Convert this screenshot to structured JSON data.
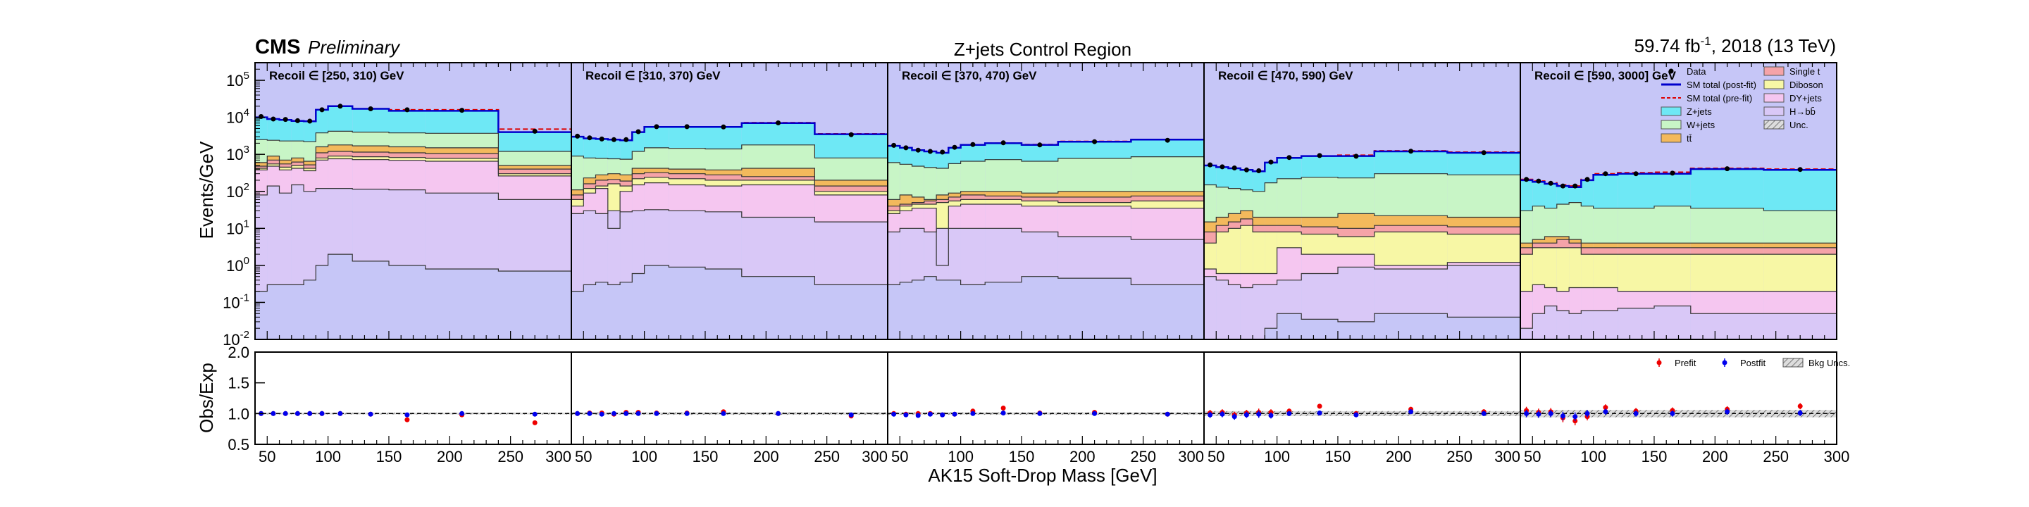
{
  "header": {
    "experiment": "CMS",
    "status": "Preliminary",
    "region_title": "Z+jets Control Region",
    "lumi": "59.74 fb",
    "lumi_exp": "-1",
    "lumi_suffix": ", 2018 (13 TeV)"
  },
  "chart_data": {
    "type": "area",
    "xlabel": "AK15 Soft-Drop Mass [GeV]",
    "ylabel_main": "Events/GeV",
    "ylabel_ratio": "Obs/Exp",
    "main_yscale": "log",
    "main_ylim": [
      0.01,
      300000
    ],
    "main_yticks": [
      {
        "v": 100000,
        "b": "10",
        "e": "5"
      },
      {
        "v": 10000,
        "b": "10",
        "e": "4"
      },
      {
        "v": 1000,
        "b": "10",
        "e": "3"
      },
      {
        "v": 100,
        "b": "10",
        "e": "2"
      },
      {
        "v": 10,
        "b": "10",
        "e": "1"
      },
      {
        "v": 1,
        "b": "10",
        "e": "0"
      },
      {
        "v": 0.1,
        "b": "10",
        "e": "-1"
      },
      {
        "v": 0.01,
        "b": "10",
        "e": "-2"
      }
    ],
    "ratio_ylim": [
      0.5,
      2.0
    ],
    "ratio_yticks": [
      "2.0",
      "1.5",
      "1.0",
      "0.5"
    ],
    "xlim": [
      40,
      300
    ],
    "xticks_labels": [
      "50",
      "100",
      "150",
      "200",
      "250",
      "300"
    ],
    "xticks_values": [
      50,
      100,
      150,
      200,
      250,
      300
    ],
    "bin_edges": [
      40,
      50,
      60,
      70,
      80,
      90,
      100,
      120,
      150,
      180,
      240,
      300
    ],
    "legend_main": [
      {
        "label": "Data",
        "kind": "marker",
        "color": "#000000"
      },
      {
        "label": "SM total (post-fit)",
        "kind": "line",
        "color": "#0000cc"
      },
      {
        "label": "SM total (pre-fit)",
        "kind": "dash",
        "color": "#dd0000"
      },
      {
        "label": "Z+jets",
        "kind": "box",
        "color": "#6ee8f5"
      },
      {
        "label": "W+jets",
        "kind": "box",
        "color": "#c8f5c6"
      },
      {
        "label": "tt̄",
        "kind": "box",
        "color": "#f3b95c"
      },
      {
        "label": "Single t",
        "kind": "box",
        "color": "#f5a3a8"
      },
      {
        "label": "Diboson",
        "kind": "box",
        "color": "#f7f7a5"
      },
      {
        "label": "DY+jets",
        "kind": "box",
        "color": "#f5c6f0"
      },
      {
        "label": "H→bb̄",
        "kind": "box",
        "color": "#d9c8f7"
      },
      {
        "label": "Unc.",
        "kind": "hatch",
        "color": "#999999"
      }
    ],
    "legend_ratio": [
      {
        "label": "Prefit",
        "color": "#ee0000"
      },
      {
        "label": "Postfit",
        "color": "#0000ee"
      },
      {
        "label": "Bkg Uncs.",
        "color": "#999999"
      }
    ],
    "stack_order": [
      "Z+jets",
      "W+jets",
      "tt̄",
      "Single t",
      "Diboson",
      "DY+jets",
      "H→bb̄"
    ],
    "colors": {
      "Z+jets": "#6ee8f5",
      "W+jets": "#c8f5c6",
      "tt̄": "#f3b95c",
      "Single t": "#f5a3a8",
      "Diboson": "#f7f7a5",
      "DY+jets": "#f5c6f0",
      "H→bb̄": "#d9c8f7",
      "base": "#c6c6f7"
    },
    "panels": [
      {
        "label": "Recoil ∈ [250, 310) GeV",
        "total": [
          10000,
          9000,
          8500,
          8000,
          7800,
          16000,
          20000,
          17000,
          15000,
          15000,
          4000
        ],
        "prefit": [
          10000,
          9000,
          8500,
          8000,
          7800,
          16000,
          20000,
          17000,
          16000,
          16000,
          4800
        ],
        "bounds": [
          [
            2500,
            2400,
            2300,
            2300,
            2200,
            3800,
            4200,
            4000,
            3800,
            3700,
            1200
          ],
          [
            600,
            900,
            700,
            800,
            650,
            1600,
            1800,
            1700,
            1600,
            1500,
            500
          ],
          [
            480,
            700,
            550,
            620,
            520,
            1100,
            1200,
            1150,
            1100,
            1050,
            400
          ],
          [
            420,
            550,
            450,
            500,
            420,
            800,
            900,
            860,
            820,
            780,
            300
          ],
          [
            380,
            480,
            380,
            420,
            360,
            700,
            760,
            720,
            690,
            650,
            260
          ],
          [
            80,
            140,
            90,
            150,
            100,
            120,
            120,
            115,
            110,
            90,
            60
          ],
          [
            0.2,
            0.3,
            0.3,
            0.3,
            0.4,
            1.0,
            2.0,
            1.3,
            1.0,
            0.8,
            0.7
          ]
        ],
        "data": [
          10500,
          9000,
          8800,
          8100,
          7900,
          16000,
          20000,
          17000,
          16000,
          15500,
          4200
        ],
        "ratio_pre": [
          1.0,
          1.0,
          1.0,
          1.0,
          1.0,
          1.0,
          1.0,
          0.99,
          0.9,
          0.98,
          0.85
        ],
        "ratio_post": [
          1.0,
          1.0,
          1.0,
          1.0,
          1.0,
          1.0,
          1.0,
          0.99,
          0.98,
          1.0,
          0.99
        ],
        "ratio_err": [
          0.01,
          0.01,
          0.01,
          0.01,
          0.01,
          0.01,
          0.01,
          0.01,
          0.015,
          0.01,
          0.02
        ],
        "band": [
          0.015,
          0.015,
          0.015,
          0.015,
          0.015,
          0.015,
          0.015,
          0.015,
          0.015,
          0.015,
          0.015
        ]
      },
      {
        "label": "Recoil ∈ [310, 370) GeV",
        "total": [
          3000,
          2700,
          2600,
          2500,
          2400,
          4000,
          5500,
          5500,
          5500,
          7000,
          3500
        ],
        "prefit": [
          3000,
          2700,
          2600,
          2500,
          2400,
          4000,
          5500,
          5500,
          5500,
          7200,
          3600
        ],
        "bounds": [
          [
            900,
            800,
            780,
            760,
            740,
            1200,
            1500,
            1450,
            1400,
            1800,
            800
          ],
          [
            110,
            230,
            280,
            300,
            280,
            420,
            420,
            400,
            380,
            420,
            200
          ],
          [
            80,
            160,
            200,
            210,
            190,
            300,
            320,
            300,
            280,
            250,
            140
          ],
          [
            60,
            120,
            140,
            160,
            140,
            220,
            240,
            220,
            200,
            200,
            100
          ],
          [
            40,
            90,
            120,
            10,
            100,
            150,
            170,
            150,
            140,
            150,
            80
          ],
          [
            25,
            30,
            25,
            30,
            28,
            30,
            32,
            30,
            28,
            20,
            15
          ],
          [
            0.2,
            0.3,
            0.35,
            0.3,
            0.35,
            0.6,
            1.0,
            0.9,
            0.8,
            0.5,
            0.3
          ]
        ],
        "data": [
          3100,
          2800,
          2600,
          2500,
          2500,
          4100,
          5600,
          5600,
          5500,
          7100,
          3400
        ],
        "ratio_pre": [
          1.0,
          1.01,
          1.01,
          0.99,
          1.02,
          1.02,
          1.01,
          1.01,
          1.03,
          1.0,
          0.96
        ],
        "ratio_post": [
          1.0,
          1.0,
          0.99,
          1.0,
          1.0,
          1.0,
          1.0,
          1.0,
          1.0,
          1.0,
          0.98
        ],
        "ratio_err": [
          0.015,
          0.02,
          0.02,
          0.02,
          0.02,
          0.02,
          0.015,
          0.015,
          0.02,
          0.015,
          0.02
        ],
        "band": [
          0.02,
          0.02,
          0.02,
          0.02,
          0.02,
          0.02,
          0.02,
          0.02,
          0.02,
          0.02,
          0.02
        ]
      },
      {
        "label": "Recoil ∈ [370, 470) GeV",
        "total": [
          1700,
          1500,
          1300,
          1200,
          1100,
          1500,
          1800,
          2000,
          1800,
          2200,
          2500
        ],
        "prefit": [
          1700,
          1500,
          1300,
          1200,
          1100,
          1500,
          1800,
          2000,
          1850,
          2250,
          2500
        ],
        "bounds": [
          [
            600,
            540,
            480,
            440,
            420,
            560,
            650,
            720,
            650,
            780,
            860
          ],
          [
            60,
            80,
            70,
            60,
            80,
            90,
            100,
            100,
            90,
            100,
            100
          ],
          [
            40,
            45,
            50,
            55,
            60,
            70,
            80,
            75,
            70,
            70,
            75
          ],
          [
            30,
            40,
            45,
            45,
            50,
            55,
            60,
            60,
            55,
            50,
            55
          ],
          [
            25,
            30,
            35,
            35,
            1,
            40,
            45,
            45,
            40,
            40,
            35
          ],
          [
            8,
            10,
            10,
            8,
            10,
            10,
            10,
            10,
            8,
            6,
            5
          ],
          [
            0.3,
            0.35,
            0.4,
            0.5,
            0.4,
            0.4,
            0.3,
            0.35,
            0.5,
            0.45,
            0.3
          ]
        ],
        "data": [
          1750,
          1500,
          1300,
          1200,
          1150,
          1550,
          1850,
          2050,
          1800,
          2200,
          2400
        ],
        "ratio_pre": [
          1.0,
          0.99,
          1.0,
          1.0,
          0.98,
          0.99,
          1.04,
          1.09,
          1.01,
          1.02,
          0.99
        ],
        "ratio_post": [
          0.99,
          0.98,
          0.97,
          0.99,
          0.98,
          0.99,
          1.0,
          1.01,
          1.0,
          1.0,
          0.99
        ],
        "ratio_err": [
          0.02,
          0.02,
          0.02,
          0.02,
          0.03,
          0.025,
          0.02,
          0.02,
          0.02,
          0.02,
          0.02
        ],
        "band": [
          0.02,
          0.02,
          0.02,
          0.02,
          0.02,
          0.02,
          0.02,
          0.02,
          0.02,
          0.02,
          0.02
        ]
      },
      {
        "label": "Recoil ∈ [470, 590) GeV",
        "total": [
          500,
          450,
          420,
          380,
          350,
          600,
          800,
          900,
          900,
          1200,
          1100
        ],
        "prefit": [
          500,
          450,
          420,
          380,
          350,
          600,
          800,
          900,
          950,
          1250,
          1150
        ],
        "bounds": [
          [
            150,
            130,
            120,
            110,
            100,
            170,
            220,
            240,
            230,
            300,
            280
          ],
          [
            15,
            20,
            25,
            30,
            20,
            20,
            20,
            20,
            25,
            22,
            20
          ],
          [
            8,
            12,
            15,
            18,
            12,
            12,
            12,
            11,
            10,
            12,
            11
          ],
          [
            4,
            8,
            10,
            12,
            8,
            8,
            8,
            7,
            6,
            8,
            7
          ],
          [
            0.8,
            0.6,
            0.6,
            0.6,
            0.6,
            0.6,
            3,
            2,
            2,
            1.0,
            1.2
          ],
          [
            0.5,
            0.4,
            0.3,
            0.25,
            0.3,
            0.3,
            0.4,
            0.6,
            0.9,
            0.8,
            1.0
          ],
          [
            0.005,
            0.005,
            0.005,
            0.005,
            0.005,
            0.02,
            0.05,
            0.035,
            0.03,
            0.05,
            0.04
          ]
        ],
        "data": [
          520,
          460,
          430,
          380,
          360,
          620,
          820,
          930,
          890,
          1220,
          1110
        ],
        "ratio_pre": [
          1.01,
          1.02,
          0.98,
          1.01,
          1.02,
          1.02,
          1.04,
          1.12,
          1.0,
          1.07,
          1.03
        ],
        "ratio_post": [
          0.98,
          0.99,
          0.95,
          0.98,
          0.99,
          0.97,
          1.0,
          1.01,
          0.98,
          1.03,
          1.0
        ],
        "ratio_err": [
          0.05,
          0.05,
          0.05,
          0.05,
          0.06,
          0.05,
          0.04,
          0.04,
          0.04,
          0.04,
          0.04
        ],
        "band": [
          0.04,
          0.04,
          0.04,
          0.04,
          0.04,
          0.04,
          0.04,
          0.04,
          0.04,
          0.04,
          0.04
        ]
      },
      {
        "label": "Recoil ∈ [590, 3000] GeV",
        "total": [
          200,
          180,
          160,
          140,
          130,
          200,
          280,
          300,
          300,
          400,
          380
        ],
        "prefit": [
          210,
          190,
          170,
          150,
          140,
          210,
          300,
          320,
          330,
          420,
          400
        ],
        "bounds": [
          [
            30,
            40,
            35,
            45,
            50,
            40,
            35,
            35,
            40,
            35,
            30
          ],
          [
            4,
            5,
            6,
            6,
            5,
            4,
            4,
            4,
            4,
            4,
            4
          ],
          [
            3,
            4,
            4,
            5,
            4,
            3,
            3,
            3,
            3,
            3,
            3
          ],
          [
            2,
            3,
            3,
            3,
            3,
            2,
            2,
            2,
            2,
            2,
            2
          ],
          [
            0.2,
            0.3,
            0.25,
            0.2,
            0.25,
            0.25,
            0.25,
            0.2,
            0.2,
            0.2,
            0.2
          ],
          [
            0.02,
            0.05,
            0.08,
            0.06,
            0.05,
            0.06,
            0.06,
            0.07,
            0.08,
            0.05,
            0.05
          ],
          [
            0.005,
            0.005,
            0.005,
            0.005,
            0.005,
            0.005,
            0.005,
            0.005,
            0.005,
            0.005,
            0.005
          ]
        ],
        "data": [
          210,
          190,
          165,
          140,
          140,
          210,
          300,
          300,
          310,
          410,
          390
        ],
        "ratio_pre": [
          1.05,
          1.02,
          1.03,
          0.93,
          0.88,
          0.95,
          1.1,
          1.04,
          1.05,
          1.07,
          1.12
        ],
        "ratio_post": [
          1.0,
          0.99,
          1.0,
          0.96,
          0.95,
          1.0,
          1.03,
          1.0,
          1.0,
          1.03,
          1.01
        ],
        "ratio_err": [
          0.06,
          0.06,
          0.06,
          0.07,
          0.07,
          0.06,
          0.05,
          0.05,
          0.05,
          0.05,
          0.05
        ],
        "band": [
          0.06,
          0.06,
          0.06,
          0.06,
          0.06,
          0.06,
          0.06,
          0.06,
          0.06,
          0.06,
          0.06
        ]
      }
    ]
  }
}
